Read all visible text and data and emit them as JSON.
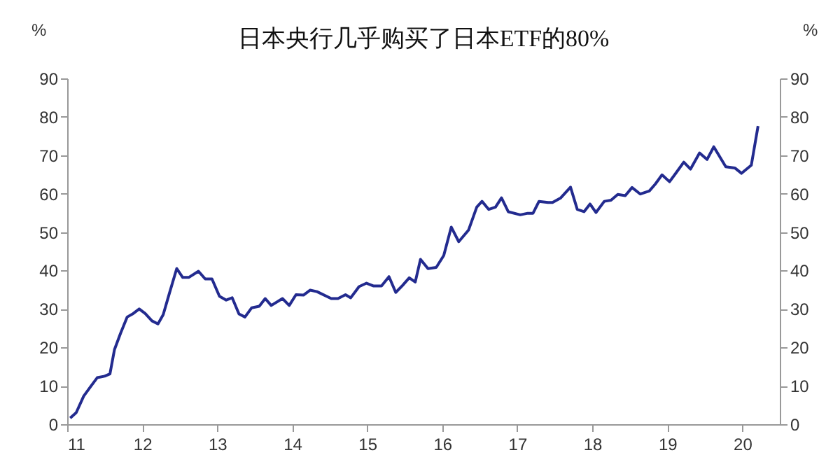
{
  "chart_data": {
    "type": "line",
    "title": "日本央行几乎购买了日本ETF的80%",
    "ylabel": "%",
    "y2label": "%",
    "x": [
      11.04,
      11.12,
      11.22,
      11.32,
      11.4,
      11.5,
      11.57,
      11.63,
      11.71,
      11.8,
      11.88,
      11.96,
      12.04,
      12.13,
      12.21,
      12.28,
      12.36,
      12.46,
      12.54,
      12.62,
      12.75,
      12.84,
      12.93,
      13.03,
      13.12,
      13.2,
      13.29,
      13.37,
      13.46,
      13.56,
      13.64,
      13.72,
      13.87,
      13.96,
      14.05,
      14.15,
      14.24,
      14.33,
      14.52,
      14.61,
      14.71,
      14.78,
      14.89,
      14.99,
      15.08,
      15.19,
      15.29,
      15.38,
      15.47,
      15.56,
      15.64,
      15.71,
      15.81,
      15.92,
      16.02,
      16.12,
      16.22,
      16.35,
      16.46,
      16.53,
      16.62,
      16.71,
      16.79,
      16.88,
      17.04,
      17.14,
      17.21,
      17.29,
      17.41,
      17.47,
      17.58,
      17.71,
      17.8,
      17.89,
      17.97,
      18.05,
      18.16,
      18.25,
      18.34,
      18.44,
      18.53,
      18.64,
      18.76,
      18.84,
      18.93,
      19.03,
      19.12,
      19.22,
      19.31,
      19.43,
      19.53,
      19.62,
      19.78,
      19.9,
      19.99,
      20.12,
      20.21
    ],
    "series": [
      {
        "color": "#232b8f",
        "values": [
          1.6,
          3,
          7.3,
          10,
          12.1,
          12.5,
          13.1,
          19.4,
          23.6,
          27.9,
          28.8,
          30,
          28.8,
          26.9,
          26.1,
          28.5,
          33.9,
          40.5,
          38.2,
          38.2,
          39.8,
          37.8,
          37.8,
          33.3,
          32.3,
          32.9,
          28.7,
          27.9,
          30.3,
          30.7,
          32.7,
          30.9,
          32.7,
          30.9,
          33.7,
          33.6,
          34.9,
          34.5,
          32.7,
          32.7,
          33.7,
          32.9,
          35.8,
          36.7,
          36,
          36,
          38.4,
          34.3,
          36.1,
          38.1,
          37,
          42.9,
          40.5,
          40.8,
          43.9,
          51.3,
          47.5,
          50.5,
          56.5,
          58,
          55.9,
          56.5,
          58.9,
          55.3,
          54.5,
          54.9,
          54.9,
          58,
          57.7,
          57.7,
          58.9,
          61.7,
          55.9,
          55.3,
          57.3,
          55.1,
          58,
          58.3,
          59.8,
          59.5,
          61.6,
          59.9,
          60.7,
          62.5,
          64.9,
          63.1,
          65.5,
          68.2,
          66.4,
          70.6,
          68.9,
          72.2,
          67,
          66.7,
          65.3,
          67.4,
          77.6
        ]
      }
    ],
    "xlim": [
      11,
      20.5
    ],
    "xticks": [
      11,
      12,
      13,
      14,
      15,
      16,
      17,
      18,
      19,
      20
    ],
    "ylim": [
      0,
      90
    ],
    "yticks": [
      0,
      10,
      20,
      30,
      40,
      50,
      60,
      70,
      80,
      90
    ],
    "y2lim": [
      0,
      90
    ],
    "y2ticks": [
      0,
      10,
      20,
      30,
      40,
      50,
      60,
      70,
      80,
      90
    ],
    "grid": false,
    "legend": false,
    "marker": "none",
    "line_style": "solid"
  }
}
